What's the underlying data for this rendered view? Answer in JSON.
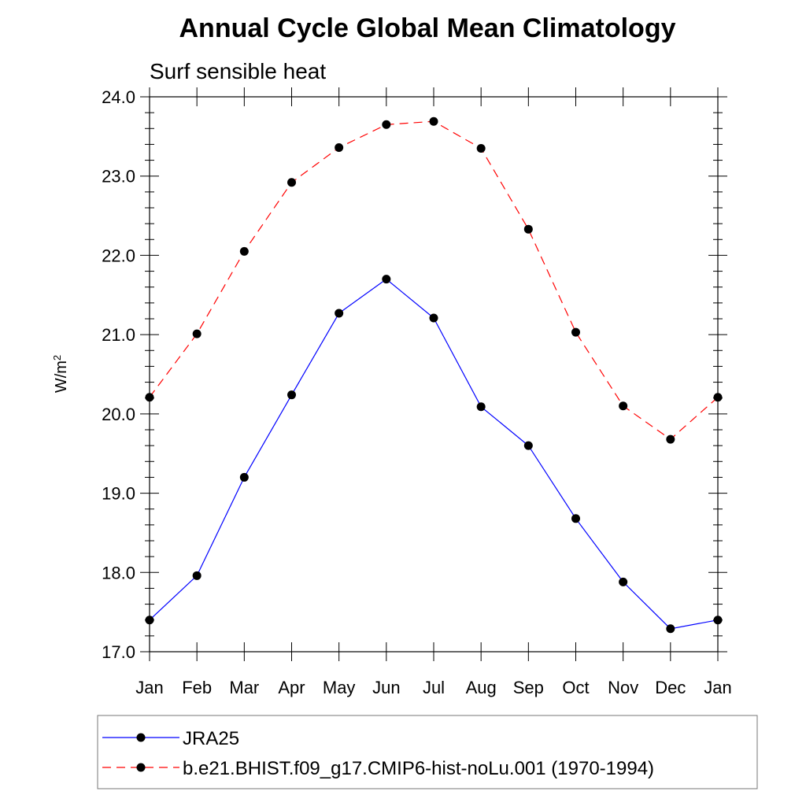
{
  "colors": {
    "background": "#ffffff",
    "axis": "#000000",
    "marker": "#000000",
    "jra25": "#0000ff",
    "cmip6": "#ff0000"
  },
  "chart_data": {
    "type": "line",
    "title": "Annual Cycle Global Mean Climatology",
    "subtitle": "Surf sensible heat",
    "xlabel": "",
    "ylabel": "W/m",
    "ylabel_sup": "2",
    "x": [
      "Jan",
      "Feb",
      "Mar",
      "Apr",
      "May",
      "Jun",
      "Jul",
      "Aug",
      "Sep",
      "Oct",
      "Nov",
      "Dec",
      "Jan"
    ],
    "ylim": [
      17.0,
      24.0
    ],
    "yticks": [
      "17.0",
      "18.0",
      "19.0",
      "20.0",
      "21.0",
      "22.0",
      "23.0",
      "24.0"
    ],
    "grid": false,
    "legend_position": "bottom",
    "series": [
      {
        "name": "JRA25",
        "color": "#0000ff",
        "line_style": "solid",
        "marker": "filled-circle",
        "values": [
          17.4,
          17.96,
          19.2,
          20.24,
          21.27,
          21.7,
          21.21,
          20.09,
          19.6,
          18.68,
          17.88,
          17.29,
          17.4
        ]
      },
      {
        "name": "b.e21.BHIST.f09_g17.CMIP6-hist-noLu.001 (1970-1994)",
        "color": "#ff0000",
        "line_style": "dashed",
        "marker": "filled-circle",
        "values": [
          20.21,
          21.01,
          22.05,
          22.92,
          23.36,
          23.65,
          23.69,
          23.35,
          22.33,
          21.03,
          20.1,
          19.68,
          20.21
        ]
      }
    ]
  }
}
